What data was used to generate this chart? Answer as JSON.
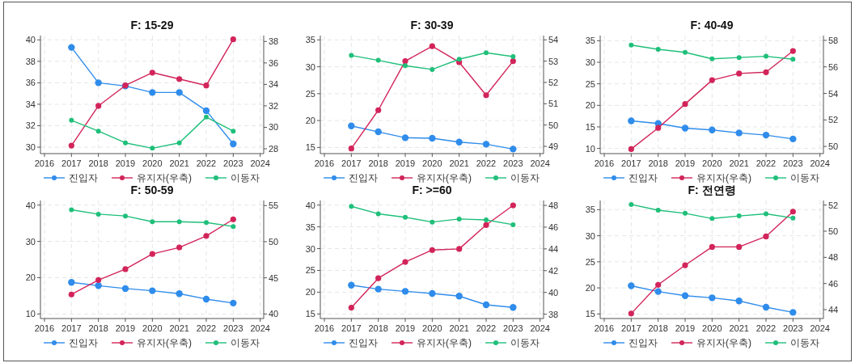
{
  "chart_data": [
    {
      "type": "line",
      "title": "F: 15-29",
      "x": [
        2017,
        2018,
        2019,
        2020,
        2021,
        2022,
        2023
      ],
      "xlim": [
        2015.85,
        2024.13
      ],
      "xticks": [
        2016,
        2017,
        2018,
        2019,
        2020,
        2021,
        2022,
        2023,
        2024
      ],
      "ylim": [
        29.4,
        40.4
      ],
      "yticks": [
        30,
        32,
        34,
        36,
        38,
        40
      ],
      "y2lim": [
        27.55,
        38.55
      ],
      "y2ticks": [
        28,
        30,
        32,
        34,
        36,
        38
      ],
      "grid": true,
      "legend": "bottom",
      "marker": "circle",
      "line_style": "solid",
      "series": [
        {
          "name": "진입자",
          "color": "#2f8ceb",
          "values": [
            39.3,
            36.0,
            35.7,
            35.1,
            35.1,
            33.4,
            30.3
          ]
        },
        {
          "name": "유지자(우축)",
          "color": "#d2245a",
          "axis": "y2",
          "values": [
            28.3,
            32.0,
            33.9,
            35.1,
            34.5,
            33.9,
            38.2
          ]
        },
        {
          "name": "이동자",
          "color": "#1fbf7a",
          "values": [
            32.5,
            31.5,
            30.4,
            29.9,
            30.4,
            32.8,
            31.5
          ]
        }
      ]
    },
    {
      "type": "line",
      "title": "F: 30-39",
      "x": [
        2017,
        2018,
        2019,
        2020,
        2021,
        2022,
        2023
      ],
      "xlim": [
        2015.85,
        2024.13
      ],
      "xticks": [
        2016,
        2017,
        2018,
        2019,
        2020,
        2021,
        2022,
        2023,
        2024
      ],
      "ylim": [
        13.85,
        35.8
      ],
      "yticks": [
        15,
        20,
        25,
        30,
        35
      ],
      "y2lim": [
        48.66,
        54.2
      ],
      "y2ticks": [
        49,
        50,
        51,
        52,
        53,
        54
      ],
      "grid": true,
      "legend": "bottom",
      "marker": "circle",
      "line_style": "solid",
      "series": [
        {
          "name": "진입자",
          "color": "#2f8ceb",
          "values": [
            19.0,
            17.9,
            16.8,
            16.7,
            16.0,
            15.6,
            14.7
          ]
        },
        {
          "name": "유지자(우축)",
          "color": "#d2245a",
          "axis": "y2",
          "values": [
            48.9,
            50.7,
            53.0,
            53.7,
            52.95,
            51.4,
            53.0
          ]
        },
        {
          "name": "이동자",
          "color": "#1fbf7a",
          "values": [
            32.1,
            31.2,
            30.2,
            29.5,
            31.4,
            32.6,
            31.9
          ]
        }
      ]
    },
    {
      "type": "line",
      "title": "F: 40-49",
      "x": [
        2017,
        2018,
        2019,
        2020,
        2021,
        2022,
        2023
      ],
      "xlim": [
        2015.85,
        2024.13
      ],
      "xticks": [
        2016,
        2017,
        2018,
        2019,
        2020,
        2021,
        2022,
        2023,
        2024
      ],
      "ylim": [
        8.8,
        36.2
      ],
      "yticks": [
        10,
        15,
        20,
        25,
        30,
        35
      ],
      "y2lim": [
        49.46,
        58.36
      ],
      "y2ticks": [
        50,
        52,
        54,
        56,
        58
      ],
      "grid": true,
      "legend": "bottom",
      "marker": "circle",
      "line_style": "solid",
      "series": [
        {
          "name": "진입자",
          "color": "#2f8ceb",
          "values": [
            16.4,
            15.8,
            14.7,
            14.3,
            13.6,
            13.1,
            12.2
          ]
        },
        {
          "name": "유지자(우축)",
          "color": "#d2245a",
          "axis": "y2",
          "values": [
            49.8,
            51.4,
            53.2,
            55.0,
            55.5,
            55.6,
            57.2
          ]
        },
        {
          "name": "이동자",
          "color": "#1fbf7a",
          "values": [
            34.0,
            33.0,
            32.3,
            30.8,
            31.1,
            31.4,
            30.7
          ]
        }
      ]
    },
    {
      "type": "line",
      "title": "F: 50-59",
      "x": [
        2017,
        2018,
        2019,
        2020,
        2021,
        2022,
        2023
      ],
      "xlim": [
        2015.85,
        2024.13
      ],
      "xticks": [
        2016,
        2017,
        2018,
        2019,
        2020,
        2021,
        2022,
        2023,
        2024
      ],
      "ylim": [
        8.74,
        41.26
      ],
      "yticks": [
        10,
        20,
        30,
        40
      ],
      "y2lim": [
        39.37,
        55.7
      ],
      "y2ticks": [
        40,
        45,
        50,
        55
      ],
      "grid": true,
      "legend": "bottom",
      "marker": "circle",
      "line_style": "solid",
      "series": [
        {
          "name": "진입자",
          "color": "#2f8ceb",
          "values": [
            18.7,
            17.8,
            17.0,
            16.4,
            15.6,
            14.1,
            13.0
          ]
        },
        {
          "name": "유지자(우축)",
          "color": "#d2245a",
          "axis": "y2",
          "values": [
            42.7,
            44.7,
            46.2,
            48.3,
            49.2,
            50.8,
            53.1
          ]
        },
        {
          "name": "이동자",
          "color": "#1fbf7a",
          "values": [
            38.7,
            37.5,
            37.0,
            35.4,
            35.4,
            35.2,
            34.1
          ]
        }
      ]
    },
    {
      "type": "line",
      "title": "F: >=60",
      "x": [
        2017,
        2018,
        2019,
        2020,
        2021,
        2022,
        2023
      ],
      "xlim": [
        2015.85,
        2024.13
      ],
      "xticks": [
        2016,
        2017,
        2018,
        2019,
        2020,
        2021,
        2022,
        2023,
        2024
      ],
      "ylim": [
        13.95,
        41.05
      ],
      "yticks": [
        15,
        20,
        25,
        30,
        35,
        40
      ],
      "y2lim": [
        37.6,
        48.45
      ],
      "y2ticks": [
        38,
        40,
        42,
        44,
        46,
        48
      ],
      "grid": true,
      "legend": "bottom",
      "marker": "circle",
      "line_style": "solid",
      "series": [
        {
          "name": "진입자",
          "color": "#2f8ceb",
          "values": [
            21.6,
            20.7,
            20.2,
            19.7,
            19.1,
            17.1,
            16.5
          ]
        },
        {
          "name": "유지자(우축)",
          "color": "#d2245a",
          "axis": "y2",
          "values": [
            38.6,
            41.3,
            42.8,
            43.9,
            44.0,
            46.2,
            48.0
          ]
        },
        {
          "name": "이동자",
          "color": "#1fbf7a",
          "values": [
            39.7,
            38.0,
            37.2,
            36.1,
            36.8,
            36.6,
            35.5
          ]
        }
      ]
    },
    {
      "type": "line",
      "title": "F: 전연령",
      "x": [
        2017,
        2018,
        2019,
        2020,
        2021,
        2022,
        2023
      ],
      "xlim": [
        2015.85,
        2024.13
      ],
      "xticks": [
        2016,
        2017,
        2018,
        2019,
        2020,
        2021,
        2022,
        2023,
        2024
      ],
      "ylim": [
        14.12,
        36.76
      ],
      "yticks": [
        15,
        20,
        25,
        30,
        35
      ],
      "y2lim": [
        43.32,
        52.35
      ],
      "y2ticks": [
        44,
        46,
        48,
        50,
        52
      ],
      "grid": true,
      "legend": "bottom",
      "marker": "circle",
      "line_style": "solid",
      "series": [
        {
          "name": "진입자",
          "color": "#2f8ceb",
          "values": [
            20.4,
            19.3,
            18.5,
            18.1,
            17.5,
            16.3,
            15.3
          ]
        },
        {
          "name": "유지자(우축)",
          "color": "#d2245a",
          "axis": "y2",
          "values": [
            43.7,
            45.9,
            47.4,
            48.8,
            48.8,
            49.6,
            51.5
          ]
        },
        {
          "name": "이동자",
          "color": "#1fbf7a",
          "values": [
            36.0,
            34.9,
            34.3,
            33.3,
            33.8,
            34.2,
            33.4
          ]
        }
      ]
    }
  ]
}
